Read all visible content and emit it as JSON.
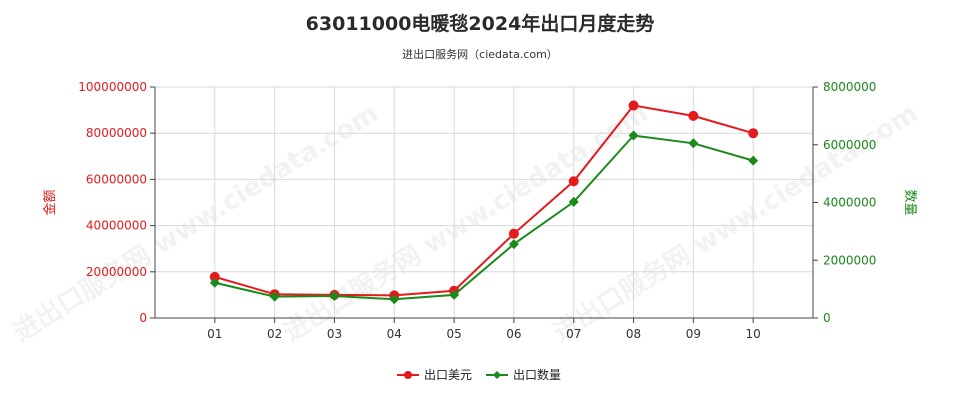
{
  "title": "63011000电暖毯2024年出口月度走势",
  "subtitle": "进出口服务网（ciedata.com）",
  "watermark": "进出口服务网 www.ciedata.com",
  "chart_data": {
    "type": "line",
    "categories": [
      "01",
      "02",
      "03",
      "04",
      "05",
      "06",
      "07",
      "08",
      "09",
      "10"
    ],
    "series": [
      {
        "name": "出口美元",
        "axis": "left",
        "color": "#e41a1c",
        "marker": "circle",
        "values": [
          17800000,
          10300000,
          10000000,
          9800000,
          11800000,
          36500000,
          59200000,
          92000000,
          87500000,
          80000000
        ]
      },
      {
        "name": "出口数量",
        "axis": "right",
        "color": "#1a8a1a",
        "marker": "diamond",
        "values": [
          1220000,
          740000,
          760000,
          650000,
          800000,
          2560000,
          4020000,
          6320000,
          6050000,
          5450000
        ]
      }
    ],
    "left_axis": {
      "label": "金额",
      "ylim": [
        0,
        100000000
      ],
      "ticks": [
        0,
        20000000,
        40000000,
        60000000,
        80000000,
        100000000
      ],
      "tick_labels": [
        "0",
        "20000000",
        "40000000",
        "60000000",
        "80000000",
        "100000000"
      ],
      "color": "#e41a1c"
    },
    "right_axis": {
      "label": "数量",
      "ylim": [
        0,
        8000000
      ],
      "ticks": [
        0,
        2000000,
        4000000,
        6000000,
        8000000
      ],
      "tick_labels": [
        "0",
        "2000000",
        "4000000",
        "6000000",
        "8000000"
      ],
      "color": "#1a8a1a"
    },
    "grid": true,
    "legend_position": "bottom-center"
  }
}
